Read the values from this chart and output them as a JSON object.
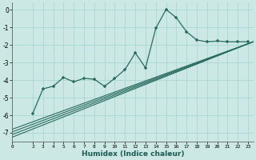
{
  "xlabel": "Humidex (Indice chaleur)",
  "ylabel": "",
  "bg_color": "#cce8e4",
  "grid_color": "#a8d8d2",
  "line_color": "#2a6b60",
  "xlim": [
    0,
    23.5
  ],
  "ylim": [
    -7.5,
    0.4
  ],
  "yticks": [
    0,
    -1,
    -2,
    -3,
    -4,
    -5,
    -6,
    -7
  ],
  "xticks": [
    0,
    2,
    3,
    4,
    5,
    6,
    7,
    8,
    9,
    10,
    11,
    12,
    13,
    14,
    15,
    16,
    17,
    18,
    19,
    20,
    21,
    22,
    23
  ],
  "main_x": [
    2,
    3,
    4,
    5,
    6,
    7,
    8,
    9,
    10,
    11,
    12,
    13,
    14,
    15,
    16,
    17,
    18,
    19,
    20,
    21,
    22,
    23
  ],
  "main_y": [
    -5.9,
    -4.5,
    -4.35,
    -3.85,
    -4.1,
    -3.9,
    -3.95,
    -4.35,
    -3.9,
    -3.4,
    -2.45,
    -3.3,
    -1.05,
    0.02,
    -0.45,
    -1.25,
    -1.72,
    -1.82,
    -1.78,
    -1.82,
    -1.82,
    -1.82
  ],
  "line1_x": [
    0,
    23.5
  ],
  "line1_y": [
    -7.25,
    -1.82
  ],
  "line2_x": [
    0,
    23.5
  ],
  "line2_y": [
    -7.1,
    -1.82
  ],
  "line3_x": [
    0,
    23.5
  ],
  "line3_y": [
    -6.95,
    -1.82
  ],
  "line4_x": [
    0,
    23.5
  ],
  "line4_y": [
    -6.8,
    -1.82
  ]
}
